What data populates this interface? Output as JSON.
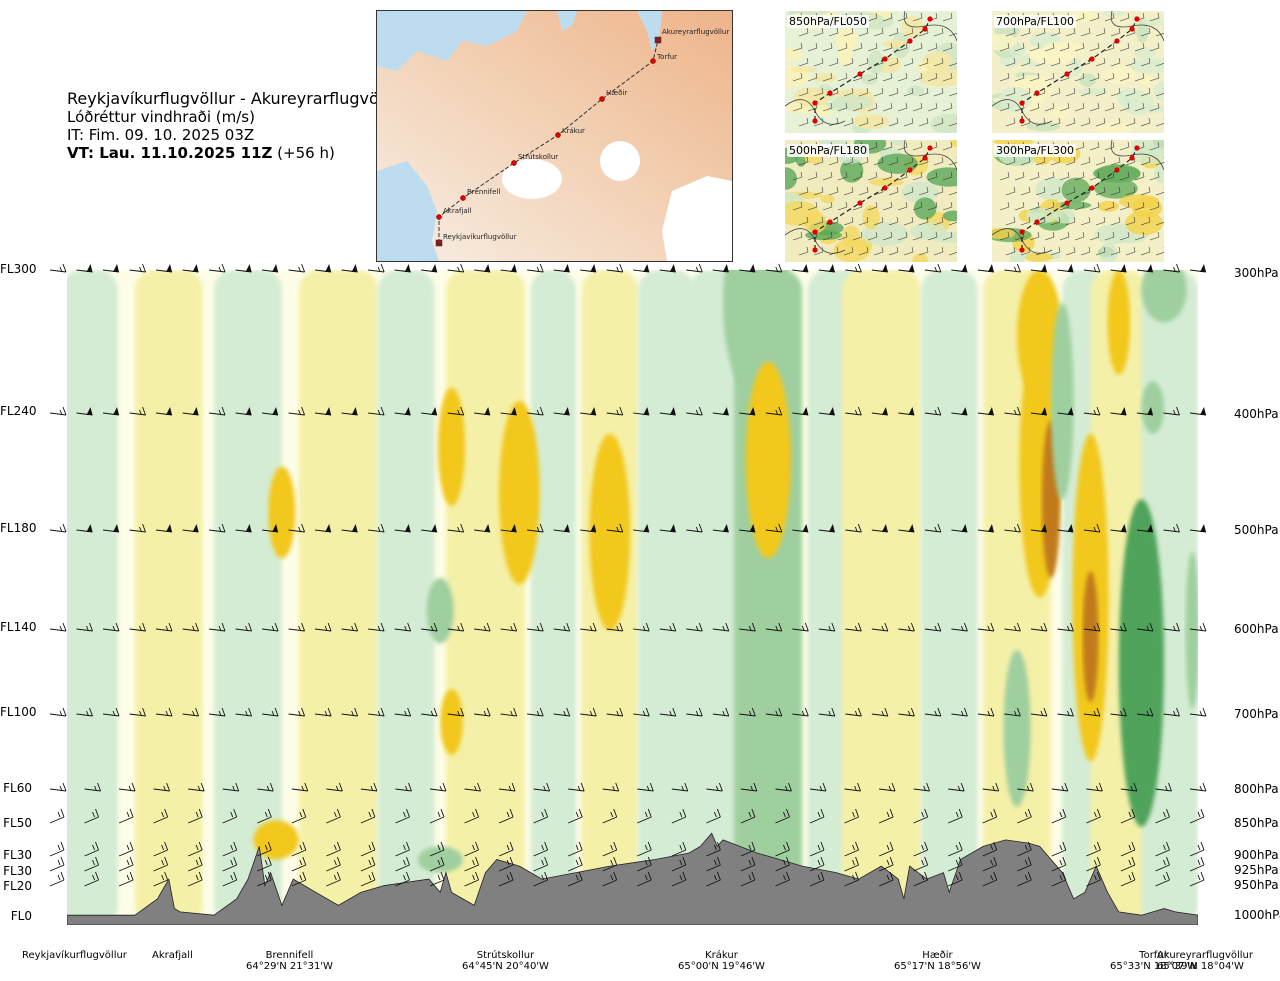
{
  "header": {
    "route": "Reykjavíkurflugvöllur - Akureyrarflugvöllur",
    "parameter": "Lóðréttur vindhraði (m/s)",
    "issue_time": "IT: Fim. 09. 10. 2025 03Z",
    "valid_time": "VT: Lau. 11.10.2025 11Z",
    "valid_offset": "(+56 h)"
  },
  "map": {
    "points": [
      {
        "name": "Akureyrarflugvöllur",
        "kind": "airport"
      },
      {
        "name": "Torfur",
        "kind": "waypoint"
      },
      {
        "name": "Hæðir",
        "kind": "waypoint"
      },
      {
        "name": "Krákur",
        "kind": "waypoint"
      },
      {
        "name": "Strútskollur",
        "kind": "waypoint"
      },
      {
        "name": "Brennifell",
        "kind": "waypoint"
      },
      {
        "name": "Akrafjall",
        "kind": "waypoint"
      },
      {
        "name": "Reykjavíkurflugvöllur",
        "kind": "airport"
      }
    ]
  },
  "minimaps": [
    {
      "label": "850hPa/FL050"
    },
    {
      "label": "700hPa/FL100"
    },
    {
      "label": "500hPa/FL180"
    },
    {
      "label": "300hPa/FL300"
    }
  ],
  "chart_data": {
    "type": "heatmap",
    "title": "Lóðréttur vindhraði (m/s)",
    "x_axis": "distance along route",
    "flight_levels": [
      "FL300",
      "FL240",
      "FL180",
      "FL140",
      "FL100",
      "FL60",
      "FL50",
      "FL30",
      "FL30",
      "FL20",
      "FL0"
    ],
    "pressure_levels": [
      "300hPa",
      "400hPa",
      "500hPa",
      "600hPa",
      "700hPa",
      "800hPa",
      "850hPa",
      "900hPa",
      "925hPa",
      "950hPa",
      "1000hPa"
    ],
    "wind_barb_levels_hPa": [
      300,
      400,
      500,
      600,
      700,
      800,
      850,
      900,
      925,
      950
    ],
    "waypoints": [
      {
        "name": "Reykjavíkurflugvöllur",
        "coord": ""
      },
      {
        "name": "Akrafjall",
        "coord": ""
      },
      {
        "name": "Brennifell",
        "coord": "64°29'N 21°31'W"
      },
      {
        "name": "Strútskollur",
        "coord": "64°45'N 20°40'W"
      },
      {
        "name": "Krákur",
        "coord": "65°00'N 19°46'W"
      },
      {
        "name": "Hæðir",
        "coord": "65°17'N 18°56'W"
      },
      {
        "name": "Torfur",
        "coord": "65°33'N 18°07'W"
      },
      {
        "name": "Akureyrarflugvöllur",
        "coord": "65°39'N 18°04'W"
      }
    ],
    "colors": {
      "strong_updraft": "#c07a1e",
      "updraft": "#f2c81f",
      "weak_updraft": "#f5f0a8",
      "near_zero": "#fdfde8",
      "weak_downdraft": "#d4ecd4",
      "downdraft": "#9fcf9f",
      "strong_downdraft": "#4fa35a",
      "terrain": "#808080"
    }
  }
}
